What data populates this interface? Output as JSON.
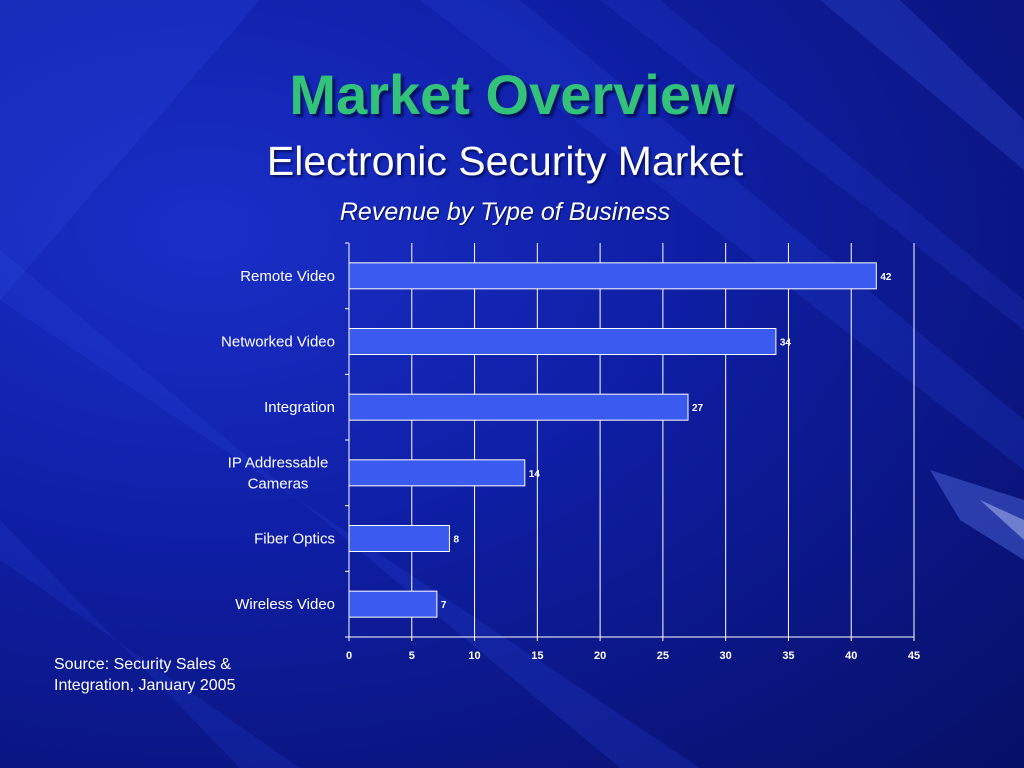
{
  "slide": {
    "title": "Market Overview",
    "subtitle": "Electronic Security Market",
    "source_line1": "Source: Security Sales &",
    "source_line2": "Integration, January 2005"
  },
  "colors": {
    "title": "#33c27a",
    "bar_fill": "#3b5bf0",
    "bar_stroke": "#ffffff",
    "text": "#ffffff",
    "background": "#0f1fa6"
  },
  "chart_data": {
    "type": "bar",
    "orientation": "horizontal",
    "title": "Revenue by Type of Business",
    "categories": [
      [
        "Remote Video"
      ],
      [
        "Networked Video"
      ],
      [
        "Integration"
      ],
      [
        "IP Addressable",
        "Cameras"
      ],
      [
        "Fiber Optics"
      ],
      [
        "Wireless Video"
      ]
    ],
    "values": [
      42,
      34,
      27,
      14,
      8,
      7
    ],
    "xlim": [
      0,
      45
    ],
    "x_ticks": [
      0,
      5,
      10,
      15,
      20,
      25,
      30,
      35,
      40,
      45
    ],
    "grid": "vertical",
    "data_labels": true,
    "xlabel": "",
    "ylabel": ""
  }
}
